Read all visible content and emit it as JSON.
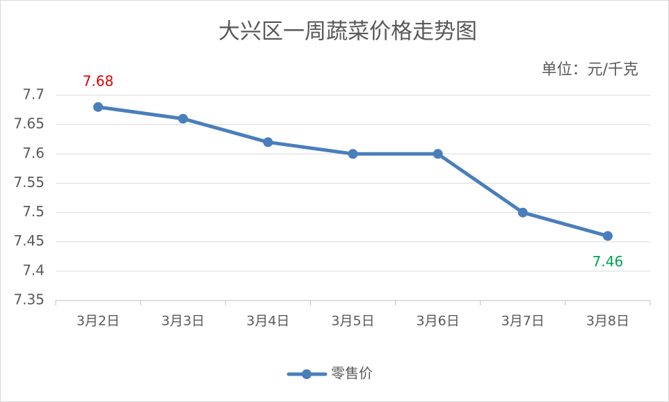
{
  "chart_data": {
    "type": "line",
    "title": "大兴区一周蔬菜价格走势图",
    "unit": "单位：元/千克",
    "categories": [
      "3月2日",
      "3月3日",
      "3月4日",
      "3月5日",
      "3月6日",
      "3月7日",
      "3月8日"
    ],
    "series": [
      {
        "name": "零售价",
        "color": "#4a7ebb",
        "values": [
          7.68,
          7.66,
          7.62,
          7.6,
          7.6,
          7.5,
          7.46
        ],
        "value_labels": [
          "7.68",
          null,
          null,
          null,
          null,
          null,
          "7.46"
        ],
        "value_label_colors": [
          "#e00000",
          null,
          null,
          null,
          null,
          null,
          "#00a050"
        ]
      }
    ],
    "ylim": [
      7.35,
      7.7
    ],
    "yticks": [
      7.35,
      7.4,
      7.45,
      7.5,
      7.55,
      7.6,
      7.65,
      7.7
    ],
    "grid": true,
    "legend": "bottom"
  }
}
